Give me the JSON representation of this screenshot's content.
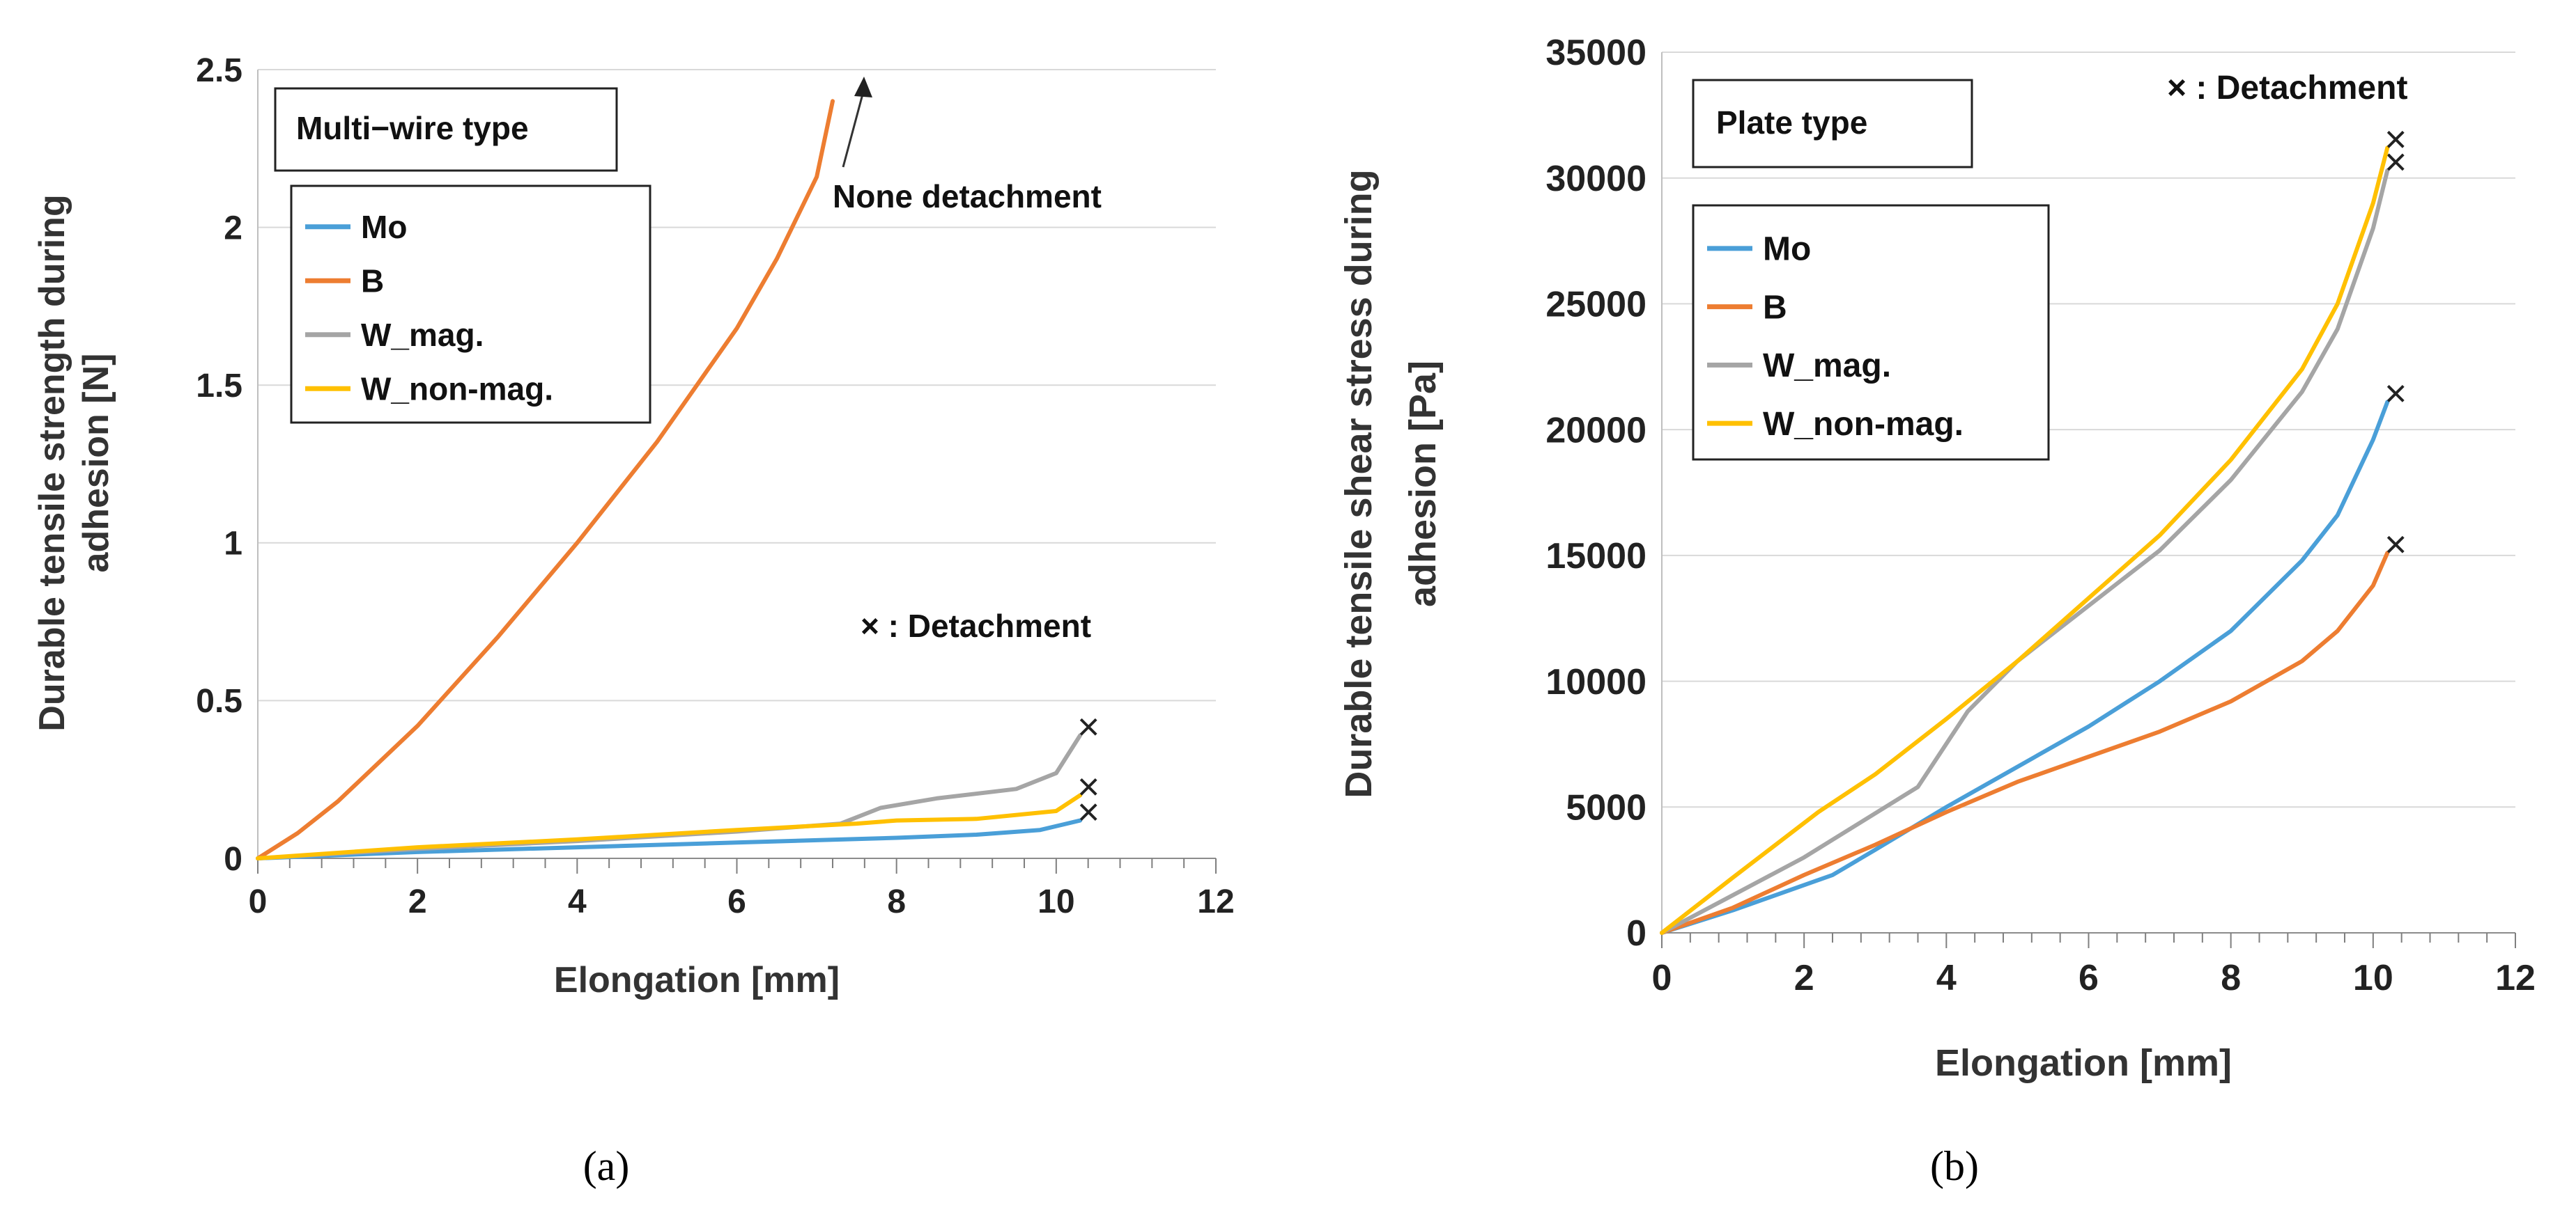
{
  "chart_data": [
    {
      "type": "line",
      "panel_label": "(a)",
      "box_title": "Multi−wire type",
      "xlabel": "Elongation  [mm]",
      "ylabel_lines": [
        "Durable tensile strength  during",
        "adhesion  [N]"
      ],
      "xlim": [
        0,
        12
      ],
      "ylim": [
        0,
        2.5
      ],
      "xticks": [
        "0",
        "2",
        "4",
        "6",
        "8",
        "10",
        "12"
      ],
      "yticks": [
        "0",
        "0.5",
        "1",
        "1.5",
        "2",
        "2.5"
      ],
      "grid": "horizontal",
      "legend_placement": "upper-left",
      "annotations": [
        "None detachment",
        "× : Detachment"
      ],
      "series": [
        {
          "name": "Mo",
          "color": "#4a9fd8",
          "x": [
            0,
            2,
            4,
            6,
            8,
            9,
            9.8,
            10.3
          ],
          "y": [
            0,
            0.02,
            0.035,
            0.05,
            0.065,
            0.075,
            0.09,
            0.12
          ],
          "detachment": true
        },
        {
          "name": "B",
          "color": "#ed7d31",
          "x": [
            0,
            0.5,
            1,
            2,
            3,
            4,
            5,
            6,
            6.5,
            7,
            7.2
          ],
          "y": [
            0,
            0.08,
            0.18,
            0.42,
            0.7,
            1.0,
            1.32,
            1.68,
            1.9,
            2.16,
            2.4
          ],
          "detachment": false
        },
        {
          "name": "W_mag.",
          "color": "#a5a5a5",
          "x": [
            0,
            2,
            4,
            6,
            7.3,
            7.8,
            8.5,
            9.5,
            10,
            10.3
          ],
          "y": [
            0,
            0.03,
            0.055,
            0.085,
            0.11,
            0.16,
            0.19,
            0.22,
            0.27,
            0.39
          ],
          "detachment": true
        },
        {
          "name": "W_non-mag.",
          "color": "#ffc000",
          "x": [
            0,
            2,
            4,
            6,
            7.5,
            8,
            9,
            10,
            10.3
          ],
          "y": [
            0,
            0.035,
            0.06,
            0.09,
            0.11,
            0.12,
            0.125,
            0.15,
            0.2
          ],
          "detachment": true
        }
      ]
    },
    {
      "type": "line",
      "panel_label": "(b)",
      "box_title": "Plate type",
      "xlabel": "Elongation  [mm]",
      "ylabel_lines": [
        "Durable tensile shear stress during",
        "adhesion   [Pa]"
      ],
      "xlim": [
        0,
        12
      ],
      "ylim": [
        0,
        35000
      ],
      "xticks": [
        "0",
        "2",
        "4",
        "6",
        "8",
        "10",
        "12"
      ],
      "yticks": [
        "0",
        "5000",
        "10000",
        "15000",
        "20000",
        "25000",
        "30000",
        "35000"
      ],
      "grid": "horizontal",
      "legend_placement": "upper-left",
      "annotations": [
        "× : Detachment"
      ],
      "series": [
        {
          "name": "Mo",
          "color": "#4a9fd8",
          "x": [
            0,
            1,
            2.4,
            3,
            4,
            5,
            6,
            7,
            8,
            9,
            9.5,
            10,
            10.2
          ],
          "y": [
            0,
            900,
            2300,
            3300,
            5000,
            6600,
            8200,
            10000,
            12000,
            14800,
            16600,
            19600,
            21100
          ],
          "detachment": true
        },
        {
          "name": "B",
          "color": "#ed7d31",
          "x": [
            0,
            1,
            2,
            3,
            4,
            5,
            6,
            7,
            8,
            9,
            9.5,
            10,
            10.2
          ],
          "y": [
            0,
            1000,
            2300,
            3500,
            4800,
            6000,
            7000,
            8000,
            9200,
            10800,
            12000,
            13800,
            15100
          ],
          "detachment": true
        },
        {
          "name": "W_mag.",
          "color": "#a5a5a5",
          "x": [
            0,
            1,
            2,
            3.6,
            4.3,
            5,
            6,
            7,
            8,
            9,
            9.5,
            10,
            10.2
          ],
          "y": [
            0,
            1500,
            3000,
            5800,
            8800,
            10800,
            13000,
            15200,
            18000,
            21500,
            24000,
            28000,
            30300
          ],
          "detachment": true
        },
        {
          "name": "W_non-mag.",
          "color": "#ffc000",
          "x": [
            0,
            1,
            2.2,
            3,
            4,
            5,
            6,
            7,
            8,
            9,
            9.5,
            10,
            10.2
          ],
          "y": [
            0,
            2200,
            4800,
            6300,
            8500,
            10800,
            13300,
            15800,
            18800,
            22400,
            25000,
            29000,
            31200
          ],
          "detachment": true
        }
      ]
    }
  ]
}
